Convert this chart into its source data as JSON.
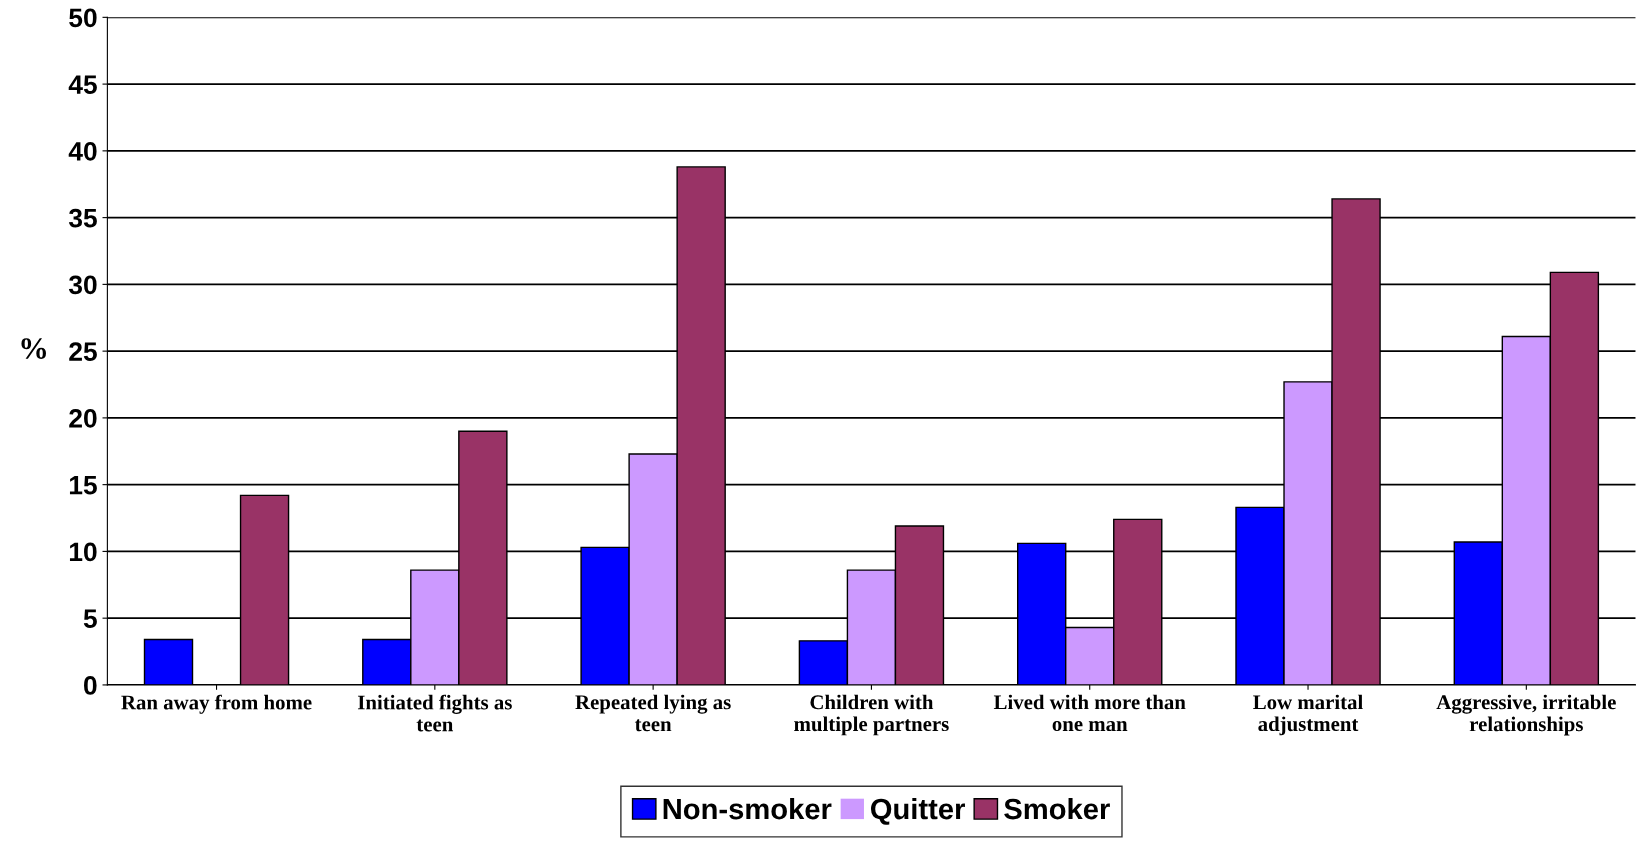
{
  "chart_data": {
    "type": "bar",
    "ylabel": "%",
    "categories": [
      "Ran away from home",
      "Initiated fights as teen",
      "Repeated lying as teen",
      "Children with multiple partners",
      "Lived with more than one man",
      "Low marital adjustment",
      "Aggressive, irritable relationships"
    ],
    "series": [
      {
        "name": "Non-smoker",
        "color": "#0000ff",
        "values": [
          3.4,
          3.4,
          10.3,
          3.3,
          10.6,
          13.3,
          10.7
        ]
      },
      {
        "name": "Quitter",
        "color": "#cc99ff",
        "values": [
          0,
          8.6,
          17.3,
          8.6,
          4.3,
          22.7,
          26.1
        ]
      },
      {
        "name": "Smoker",
        "color": "#993366",
        "values": [
          14.2,
          19.0,
          38.8,
          11.9,
          12.4,
          36.4,
          30.9
        ]
      }
    ],
    "ylim": [
      0,
      50
    ],
    "yticks": [
      0,
      5,
      10,
      15,
      20,
      25,
      30,
      35,
      40,
      45,
      50
    ],
    "grid": "y",
    "legend": "bottom"
  }
}
